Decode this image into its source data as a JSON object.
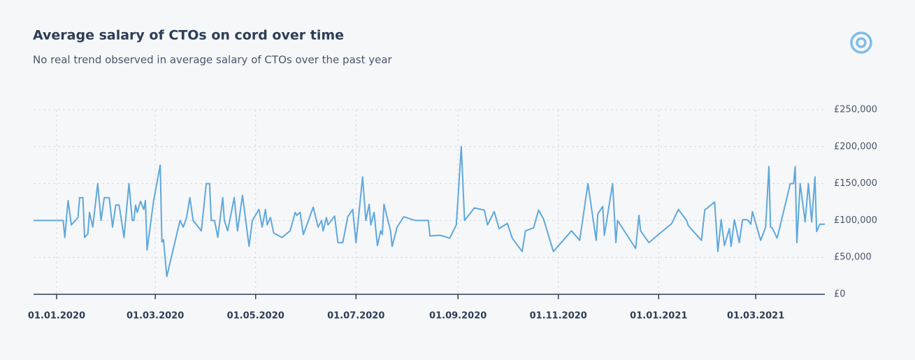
{
  "chart_data": {
    "type": "line",
    "title": "Average salary of CTOs on cord over time",
    "subtitle": "No real trend observed in average salary of CTOs over the past year",
    "color": "#5fa8dc",
    "x": [
      "2019-12-18",
      "2020-01-05",
      "2020-01-06",
      "2020-01-08",
      "2020-01-10",
      "2020-01-14",
      "2020-01-15",
      "2020-01-17",
      "2020-01-18",
      "2020-01-20",
      "2020-01-21",
      "2020-01-23",
      "2020-01-26",
      "2020-01-28",
      "2020-01-30",
      "2020-02-02",
      "2020-02-04",
      "2020-02-06",
      "2020-02-08",
      "2020-02-11",
      "2020-02-14",
      "2020-02-16",
      "2020-02-17",
      "2020-02-18",
      "2020-02-19",
      "2020-02-21",
      "2020-02-23",
      "2020-02-24",
      "2020-02-25",
      "2020-02-29",
      "2020-03-04",
      "2020-03-05",
      "2020-03-06",
      "2020-03-08",
      "2020-03-16",
      "2020-03-18",
      "2020-03-20",
      "2020-03-22",
      "2020-03-24",
      "2020-03-29",
      "2020-04-01",
      "2020-04-03",
      "2020-04-04",
      "2020-04-06",
      "2020-04-08",
      "2020-04-11",
      "2020-04-12",
      "2020-04-14",
      "2020-04-18",
      "2020-04-20",
      "2020-04-23",
      "2020-04-27",
      "2020-04-29",
      "2020-05-03",
      "2020-05-05",
      "2020-05-07",
      "2020-05-08",
      "2020-05-10",
      "2020-05-12",
      "2020-05-17",
      "2020-05-22",
      "2020-05-25",
      "2020-05-26",
      "2020-05-28",
      "2020-05-30",
      "2020-06-05",
      "2020-06-08",
      "2020-06-10",
      "2020-06-11",
      "2020-06-13",
      "2020-06-14",
      "2020-06-18",
      "2020-06-20",
      "2020-06-23",
      "2020-06-26",
      "2020-06-29",
      "2020-07-01",
      "2020-07-05",
      "2020-07-07",
      "2020-07-09",
      "2020-07-10",
      "2020-07-12",
      "2020-07-14",
      "2020-07-16",
      "2020-07-17",
      "2020-07-18",
      "2020-07-22",
      "2020-07-23",
      "2020-07-26",
      "2020-07-30",
      "2020-08-06",
      "2020-08-14",
      "2020-08-15",
      "2020-08-21",
      "2020-08-27",
      "2020-08-31",
      "2020-09-03",
      "2020-09-05",
      "2020-09-11",
      "2020-09-17",
      "2020-09-19",
      "2020-09-23",
      "2020-09-26",
      "2020-10-01",
      "2020-10-04",
      "2020-10-10",
      "2020-10-12",
      "2020-10-17",
      "2020-10-20",
      "2020-10-23",
      "2020-10-29",
      "2020-11-09",
      "2020-11-14",
      "2020-11-19",
      "2020-11-24",
      "2020-11-25",
      "2020-11-28",
      "2020-11-29",
      "2020-12-04",
      "2020-12-06",
      "2020-12-07",
      "2020-12-18",
      "2020-12-20",
      "2020-12-21",
      "2020-12-26",
      "2021-01-09",
      "2021-01-13",
      "2021-01-18",
      "2021-01-19",
      "2021-01-27",
      "2021-01-29",
      "2021-02-04",
      "2021-02-06",
      "2021-02-08",
      "2021-02-10",
      "2021-02-13",
      "2021-02-14",
      "2021-02-16",
      "2021-02-19",
      "2021-02-21",
      "2021-02-24",
      "2021-02-26",
      "2021-02-27",
      "2021-03-04",
      "2021-03-07",
      "2021-03-09",
      "2021-03-10",
      "2021-03-11",
      "2021-03-14",
      "2021-03-22",
      "2021-03-24",
      "2021-03-25",
      "2021-03-26",
      "2021-03-28",
      "2021-03-31",
      "2021-04-02",
      "2021-04-04",
      "2021-04-06",
      "2021-04-07",
      "2021-04-09",
      "2021-04-12"
    ],
    "values": [
      100000,
      100000,
      77000,
      127000,
      94000,
      104000,
      131000,
      131000,
      77000,
      82000,
      111000,
      91000,
      150000,
      100000,
      131000,
      131000,
      91000,
      121000,
      121000,
      77000,
      150000,
      100000,
      100000,
      121000,
      111000,
      126000,
      115000,
      127000,
      60000,
      127000,
      175000,
      71000,
      74000,
      24000,
      100000,
      91000,
      104000,
      131000,
      100000,
      86000,
      150000,
      150000,
      100000,
      100000,
      77000,
      131000,
      100000,
      86000,
      131000,
      86000,
      134000,
      65000,
      100000,
      115000,
      91000,
      115000,
      94000,
      104000,
      83000,
      77000,
      86000,
      111000,
      107000,
      111000,
      81000,
      118000,
      91000,
      100000,
      86000,
      104000,
      94000,
      106000,
      70000,
      70000,
      105000,
      115000,
      70000,
      159000,
      100000,
      122000,
      94000,
      111000,
      66000,
      86000,
      81000,
      122000,
      86000,
      65000,
      91000,
      105000,
      100000,
      100000,
      79000,
      80000,
      76000,
      94000,
      200000,
      100000,
      117000,
      114000,
      94000,
      112000,
      89000,
      96000,
      76000,
      58000,
      86000,
      90000,
      114000,
      102000,
      58000,
      86000,
      73000,
      150000,
      73000,
      109000,
      119000,
      80000,
      150000,
      70000,
      100000,
      62000,
      107000,
      86000,
      70000,
      96000,
      115000,
      100000,
      93000,
      73000,
      114000,
      125000,
      58000,
      101000,
      66000,
      89000,
      65000,
      101000,
      70000,
      101000,
      101000,
      95000,
      112000,
      73000,
      91000,
      173000,
      91000,
      90000,
      76000,
      150000,
      150000,
      173000,
      70000,
      150000,
      98000,
      150000,
      98000,
      159000,
      85000,
      95000,
      95000
    ],
    "xlim": [
      "2019-12-18",
      "2021-04-12"
    ],
    "xticks": [
      {
        "value": "2020-01-01",
        "label": "01.01.2020"
      },
      {
        "value": "2020-03-01",
        "label": "01.03.2020"
      },
      {
        "value": "2020-05-01",
        "label": "01.05.2020"
      },
      {
        "value": "2020-07-01",
        "label": "01.07.2020"
      },
      {
        "value": "2020-09-01",
        "label": "01.09.2020"
      },
      {
        "value": "2020-11-01",
        "label": "01.11.2020"
      },
      {
        "value": "2021-01-01",
        "label": "01.01.2021"
      },
      {
        "value": "2021-03-01",
        "label": "01.03.2021"
      }
    ],
    "ylim": [
      0,
      250000
    ],
    "yticks": [
      {
        "value": 0,
        "label": "£0"
      },
      {
        "value": 50000,
        "label": "£50,000"
      },
      {
        "value": 100000,
        "label": "£100,000"
      },
      {
        "value": 150000,
        "label": "£150,000"
      },
      {
        "value": 200000,
        "label": "£200,000"
      },
      {
        "value": 250000,
        "label": "£250,000"
      }
    ],
    "grid": true
  }
}
